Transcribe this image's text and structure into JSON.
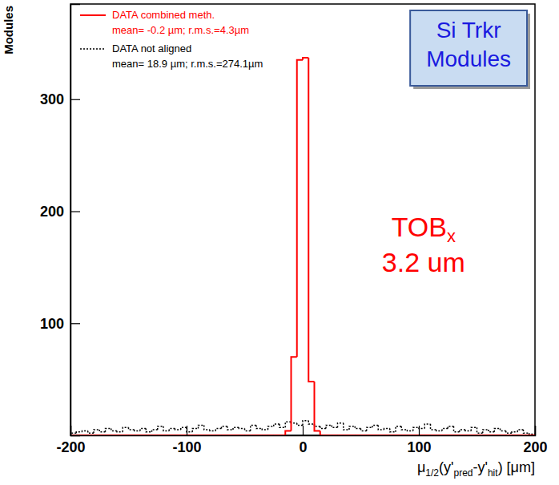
{
  "chart_data": {
    "type": "histogram",
    "title": [
      "Si Trkr",
      "Modules"
    ],
    "y_label": "Modules",
    "x_label": [
      {
        "text": "μ",
        "sub": false
      },
      {
        "text": "1/2",
        "sub": true
      },
      {
        "text": "(y'",
        "sub": false
      },
      {
        "text": "pred",
        "sub": true
      },
      {
        "text": "-y'",
        "sub": false
      },
      {
        "text": "hit",
        "sub": true
      },
      {
        "text": ") [μm]",
        "sub": false
      }
    ],
    "annotations": [
      {
        "text": "TOB",
        "subscript": "x"
      },
      {
        "text": "3.2 um"
      }
    ],
    "legend": "top-left",
    "xlim": [
      -200,
      200
    ],
    "ylim": [
      0,
      385
    ],
    "xticks": [
      -200,
      -100,
      0,
      100,
      200
    ],
    "yticks": [
      100,
      200,
      300
    ],
    "bins": [
      -200,
      -195,
      -190,
      -185,
      -180,
      -175,
      -170,
      -165,
      -160,
      -155,
      -150,
      -145,
      -140,
      -135,
      -130,
      -125,
      -120,
      -115,
      -110,
      -105,
      -100,
      -95,
      -90,
      -85,
      -80,
      -75,
      -70,
      -65,
      -60,
      -55,
      -50,
      -45,
      -40,
      -35,
      -30,
      -25,
      -20,
      -15,
      -10,
      -5,
      0,
      5,
      10,
      15,
      20,
      25,
      30,
      35,
      40,
      45,
      50,
      55,
      60,
      65,
      70,
      75,
      80,
      85,
      90,
      95,
      100,
      105,
      110,
      115,
      120,
      125,
      130,
      135,
      140,
      145,
      150,
      155,
      160,
      165,
      170,
      175,
      180,
      185,
      190,
      195,
      200
    ],
    "series": [
      {
        "name": "DATA combined meth.",
        "stats": "mean= -0.2 µm; r.m.s.=4.3µm",
        "color": "#ff0000",
        "line_style": "solid",
        "values": [
          0,
          0,
          0,
          0,
          0,
          0,
          0,
          0,
          0,
          0,
          0,
          0,
          0,
          0,
          0,
          0,
          0,
          0,
          0,
          0,
          0,
          0,
          0,
          0,
          0,
          0,
          0,
          0,
          0,
          0,
          0,
          0,
          0,
          0,
          0,
          0,
          0,
          4,
          70,
          335,
          337,
          48,
          4,
          0,
          0,
          0,
          0,
          0,
          0,
          0,
          0,
          0,
          0,
          0,
          0,
          0,
          0,
          0,
          0,
          0,
          0,
          0,
          0,
          0,
          0,
          0,
          0,
          0,
          0,
          0,
          0,
          0,
          0,
          0,
          0,
          0,
          0,
          0,
          0,
          0
        ]
      },
      {
        "name": "DATA not aligned",
        "stats": "mean= 18.9 µm; r.m.s.=274.1µm",
        "color": "#000000",
        "line_style": "dotted",
        "values": [
          2,
          3,
          4,
          2,
          5,
          3,
          6,
          4,
          3,
          7,
          5,
          4,
          6,
          3,
          5,
          8,
          4,
          6,
          5,
          7,
          3,
          6,
          9,
          5,
          4,
          6,
          8,
          5,
          7,
          6,
          4,
          9,
          6,
          5,
          8,
          10,
          7,
          12,
          11,
          9,
          13,
          10,
          8,
          6,
          9,
          7,
          11,
          5,
          8,
          6,
          4,
          7,
          9,
          5,
          6,
          3,
          8,
          5,
          4,
          7,
          6,
          10,
          5,
          4,
          6,
          8,
          3,
          5,
          4,
          7,
          2,
          5,
          3,
          6,
          4,
          2,
          3,
          5,
          2,
          1
        ]
      }
    ]
  }
}
